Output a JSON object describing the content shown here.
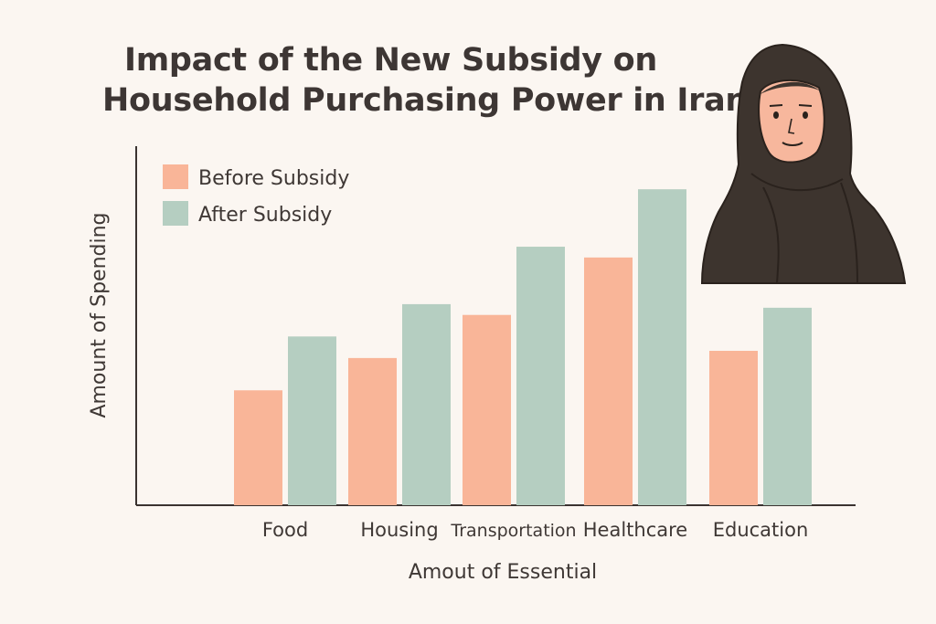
{
  "chart_data": {
    "type": "bar",
    "title_lines": [
      "Impact of the New Subsidy on",
      "Household Purchasing Power in Iran"
    ],
    "categories": [
      "Food",
      "Housing",
      "Transportation",
      "Healthcare",
      "Education"
    ],
    "series": [
      {
        "name": "Before Subsidy",
        "color": "#f9b598",
        "values": [
          32,
          41,
          53,
          69,
          43
        ]
      },
      {
        "name": "After Subsidy",
        "color": "#b5cec1",
        "values": [
          47,
          56,
          72,
          88,
          55
        ]
      }
    ],
    "xlabel": "Amout of Essential",
    "ylabel": "Amount of Spending",
    "ylim": [
      0,
      100
    ],
    "grid": false,
    "legend_position": "top-left"
  },
  "illustration": {
    "icon": "woman-in-hijab-icon",
    "colors": {
      "hijab": "#3d342e",
      "skin": "#f7b79d",
      "outline": "#2a221d"
    }
  }
}
